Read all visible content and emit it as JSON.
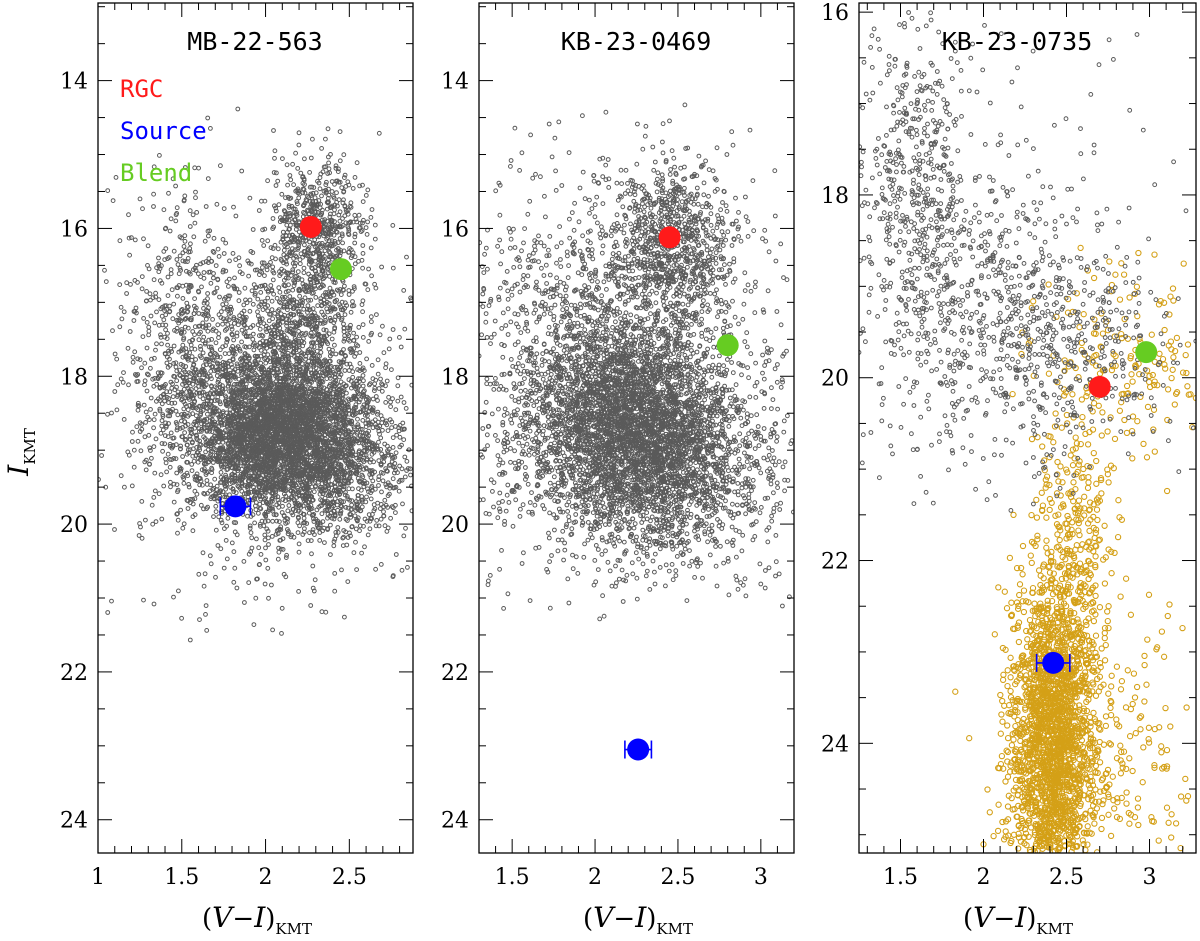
{
  "figure": {
    "ylabel_main": "I",
    "ylabel_sub": "KMT",
    "xlabel_open": "(",
    "xlabel_V": "V",
    "xlabel_dash": "−",
    "xlabel_I": "I",
    "xlabel_close": ")",
    "xlabel_sub": "KMT"
  },
  "legend": [
    {
      "label": "RGC",
      "color": "#ff1a1a"
    },
    {
      "label": "Source",
      "color": "#0000ff"
    },
    {
      "label": "Blend",
      "color": "#66cc22"
    }
  ],
  "colors": {
    "field_stars": "#5a5a5a",
    "hst_stars": "#d4a017",
    "rgc": "#ff1a1a",
    "source": "#0000ff",
    "blend": "#66cc22"
  },
  "chart_data": [
    {
      "type": "scatter",
      "title": "MB-22-563",
      "xlim": [
        1.0,
        2.88
      ],
      "ylim": [
        24.45,
        12.95
      ],
      "y_inverted": true,
      "xticks": [
        1,
        1.5,
        2,
        2.5
      ],
      "xtick_labels": [
        "1",
        "1.5",
        "2",
        "2.5"
      ],
      "yticks": [
        14,
        16,
        18,
        20,
        22,
        24
      ],
      "ytick_labels": [
        "14",
        "16",
        "18",
        "20",
        "22",
        "24"
      ],
      "points": {
        "rgc": {
          "x": 2.27,
          "y": 15.98
        },
        "blend": {
          "x": 2.45,
          "y": 16.55
        },
        "source": {
          "x": 1.82,
          "y": 19.76,
          "xerr": 0.09
        }
      },
      "field_stars": {
        "count": 7000,
        "components": [
          {
            "weight": 0.55,
            "x": 2.08,
            "y": 18.75,
            "sx": 0.28,
            "sy": 0.55
          },
          {
            "weight": 0.12,
            "x": 2.35,
            "y": 19.3,
            "sx": 0.3,
            "sy": 0.5
          },
          {
            "weight": 0.09,
            "x": 2.3,
            "y": 16.0,
            "sx": 0.14,
            "sy": 0.45
          },
          {
            "weight": 0.08,
            "x": 1.55,
            "y": 17.4,
            "sx": 0.18,
            "sy": 0.9
          },
          {
            "weight": 0.08,
            "x": 2.2,
            "y": 17.3,
            "sx": 0.18,
            "sy": 0.45
          },
          {
            "weight": 0.08,
            "x": 1.9,
            "y": 18.6,
            "sx": 0.5,
            "sy": 1.4
          }
        ],
        "bounds": {
          "x": [
            1.0,
            2.88
          ],
          "y": [
            14.2,
            21.6
          ]
        }
      }
    },
    {
      "type": "scatter",
      "title": "KB-23-0469",
      "xlim": [
        1.3,
        3.2
      ],
      "ylim": [
        24.45,
        12.95
      ],
      "y_inverted": true,
      "xticks": [
        1.5,
        2,
        2.5,
        3
      ],
      "xtick_labels": [
        "1.5",
        "2",
        "2.5",
        "3"
      ],
      "yticks": [
        14,
        16,
        18,
        20,
        22,
        24
      ],
      "ytick_labels": [
        "14",
        "16",
        "18",
        "20",
        "22",
        "24"
      ],
      "points": {
        "rgc": {
          "x": 2.45,
          "y": 16.12
        },
        "blend": {
          "x": 2.8,
          "y": 17.58
        },
        "source": {
          "x": 2.26,
          "y": 23.05,
          "xerr": 0.08
        }
      },
      "field_stars": {
        "count": 6500,
        "components": [
          {
            "weight": 0.55,
            "x": 2.22,
            "y": 18.7,
            "sx": 0.3,
            "sy": 0.7
          },
          {
            "weight": 0.13,
            "x": 2.45,
            "y": 16.2,
            "sx": 0.2,
            "sy": 0.55
          },
          {
            "weight": 0.1,
            "x": 1.85,
            "y": 17.6,
            "sx": 0.3,
            "sy": 1.0
          },
          {
            "weight": 0.08,
            "x": 2.6,
            "y": 19.4,
            "sx": 0.3,
            "sy": 0.6
          },
          {
            "weight": 0.14,
            "x": 2.2,
            "y": 18.3,
            "sx": 0.6,
            "sy": 1.5
          }
        ],
        "bounds": {
          "x": [
            1.3,
            3.2
          ],
          "y": [
            14.0,
            21.3
          ]
        }
      }
    },
    {
      "type": "scatter",
      "title": "KB-23-0735",
      "xlim": [
        1.25,
        3.28
      ],
      "ylim": [
        25.2,
        15.9
      ],
      "y_inverted": true,
      "xticks": [
        1.5,
        2,
        2.5,
        3
      ],
      "xtick_labels": [
        "1.5",
        "2",
        "2.5",
        "3"
      ],
      "yticks": [
        16,
        18,
        20,
        22,
        24
      ],
      "ytick_labels": [
        "16",
        "18",
        "20",
        "22",
        "24"
      ],
      "points": {
        "rgc": {
          "x": 2.7,
          "y": 20.1
        },
        "blend": {
          "x": 2.98,
          "y": 19.72
        },
        "source": {
          "x": 2.42,
          "y": 23.12,
          "xerr": 0.1
        }
      },
      "field_stars": {
        "count": 1400,
        "components": [
          {
            "weight": 0.3,
            "x": 1.6,
            "y": 17.8,
            "sx": 0.18,
            "sy": 0.9
          },
          {
            "weight": 0.28,
            "x": 2.05,
            "y": 19.5,
            "sx": 0.3,
            "sy": 0.7
          },
          {
            "weight": 0.17,
            "x": 2.6,
            "y": 19.6,
            "sx": 0.3,
            "sy": 0.6
          },
          {
            "weight": 0.25,
            "x": 2.0,
            "y": 19.0,
            "sx": 0.55,
            "sy": 1.4
          }
        ],
        "bounds": {
          "x": [
            1.25,
            3.28
          ],
          "y": [
            16.0,
            21.5
          ]
        }
      },
      "hst_stars": {
        "count": 2600,
        "components": [
          {
            "weight": 0.75,
            "x": 2.42,
            "y": 24.0,
            "sx": 0.13,
            "sy": 0.95
          },
          {
            "weight": 0.1,
            "x": 2.55,
            "y": 21.8,
            "sx": 0.12,
            "sy": 0.9
          },
          {
            "weight": 0.08,
            "x": 2.8,
            "y": 24.0,
            "sx": 0.3,
            "sy": 0.8
          },
          {
            "weight": 0.07,
            "x": 2.85,
            "y": 19.8,
            "sx": 0.28,
            "sy": 0.55
          }
        ],
        "bounds": {
          "x": [
            1.25,
            3.28
          ],
          "y": [
            18.1,
            25.2
          ]
        }
      }
    }
  ]
}
